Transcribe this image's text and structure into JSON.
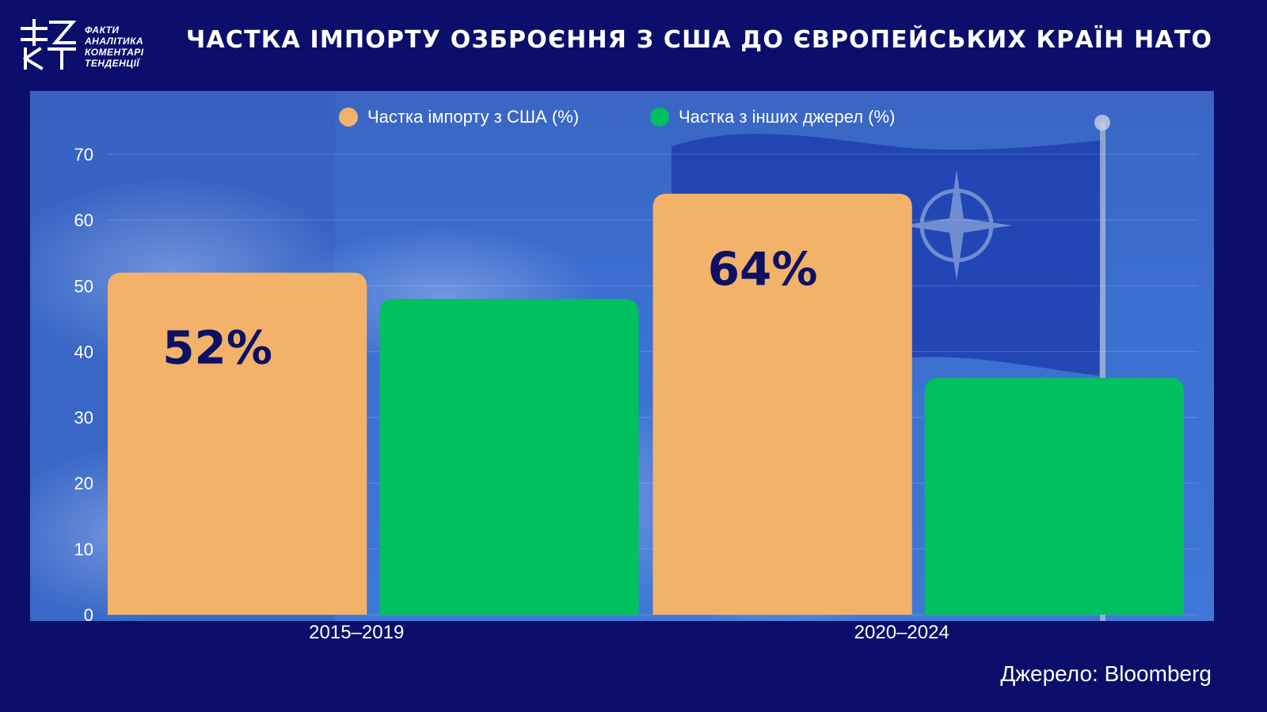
{
  "header": {
    "logo_lines": [
      "ФАКТИ",
      "АНАЛІТИКА",
      "КОМЕНТАРІ",
      "ТЕНДЕНЦІЇ"
    ],
    "title": "ЧАСТКА ІМПОРТУ ОЗБРОЄННЯ З США ДО ЄВРОПЕЙСЬКИХ КРАЇН НАТО"
  },
  "source": "Джерело: Bloomberg",
  "chart_data": {
    "type": "bar",
    "title": "ЧАСТКА ІМПОРТУ ОЗБРОЄННЯ З США ДО ЄВРОПЕЙСЬКИХ КРАЇН НАТО",
    "categories": [
      "2015–2019",
      "2020–2024"
    ],
    "series": [
      {
        "name": "Частка імпорту з США (%)",
        "values": [
          52,
          64
        ],
        "color": "#f3b26a",
        "data_labels": [
          "52%",
          "64%"
        ]
      },
      {
        "name": "Частка з інших джерел (%)",
        "values": [
          48,
          36
        ],
        "color": "#00c060",
        "data_labels": []
      }
    ],
    "ylim": [
      0,
      70
    ],
    "yticks": [
      0,
      10,
      20,
      30,
      40,
      50,
      60,
      70
    ],
    "grid": true,
    "legend_position": "top-center",
    "xlabel": "",
    "ylabel": ""
  }
}
